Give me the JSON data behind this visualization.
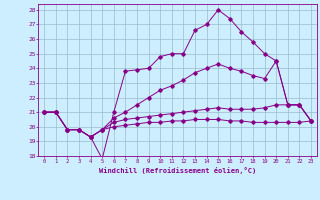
{
  "xlabel": "Windchill (Refroidissement éolien,°C)",
  "bg_color": "#cceeff",
  "grid_color": "#99bbcc",
  "line_color": "#880088",
  "xlim": [
    -0.5,
    23.5
  ],
  "ylim": [
    18,
    28.4
  ],
  "xticks": [
    0,
    1,
    2,
    3,
    4,
    5,
    6,
    7,
    8,
    9,
    10,
    11,
    12,
    13,
    14,
    15,
    16,
    17,
    18,
    19,
    20,
    21,
    22,
    23
  ],
  "yticks": [
    18,
    19,
    20,
    21,
    22,
    23,
    24,
    25,
    26,
    27,
    28
  ],
  "series": [
    {
      "x": [
        0,
        1,
        2,
        3,
        4,
        5,
        6,
        7,
        8,
        9,
        10,
        11,
        12,
        13,
        14,
        15,
        16,
        17,
        18,
        19,
        20,
        21,
        22,
        23
      ],
      "y": [
        21.0,
        21.0,
        19.8,
        19.8,
        19.3,
        17.8,
        21.0,
        23.8,
        23.9,
        24.0,
        24.8,
        25.0,
        25.0,
        26.6,
        27.0,
        28.0,
        27.4,
        26.5,
        25.8,
        25.0,
        24.5,
        21.5,
        21.5,
        20.4
      ]
    },
    {
      "x": [
        0,
        1,
        2,
        3,
        4,
        5,
        6,
        7,
        8,
        9,
        10,
        11,
        12,
        13,
        14,
        15,
        16,
        17,
        18,
        19,
        20,
        21,
        22,
        23
      ],
      "y": [
        21.0,
        21.0,
        19.8,
        19.8,
        19.3,
        19.8,
        20.6,
        21.0,
        21.5,
        22.0,
        22.5,
        22.8,
        23.2,
        23.7,
        24.0,
        24.3,
        24.0,
        23.8,
        23.5,
        23.3,
        24.5,
        21.5,
        21.5,
        20.4
      ]
    },
    {
      "x": [
        0,
        1,
        2,
        3,
        4,
        5,
        6,
        7,
        8,
        9,
        10,
        11,
        12,
        13,
        14,
        15,
        16,
        17,
        18,
        19,
        20,
        21,
        22,
        23
      ],
      "y": [
        21.0,
        21.0,
        19.8,
        19.8,
        19.3,
        19.8,
        20.3,
        20.5,
        20.6,
        20.7,
        20.8,
        20.9,
        21.0,
        21.1,
        21.2,
        21.3,
        21.2,
        21.2,
        21.2,
        21.3,
        21.5,
        21.5,
        21.5,
        20.4
      ]
    },
    {
      "x": [
        0,
        1,
        2,
        3,
        4,
        5,
        6,
        7,
        8,
        9,
        10,
        11,
        12,
        13,
        14,
        15,
        16,
        17,
        18,
        19,
        20,
        21,
        22,
        23
      ],
      "y": [
        21.0,
        21.0,
        19.8,
        19.8,
        19.3,
        19.8,
        20.0,
        20.1,
        20.2,
        20.3,
        20.3,
        20.4,
        20.4,
        20.5,
        20.5,
        20.5,
        20.4,
        20.4,
        20.3,
        20.3,
        20.3,
        20.3,
        20.3,
        20.4
      ]
    }
  ]
}
